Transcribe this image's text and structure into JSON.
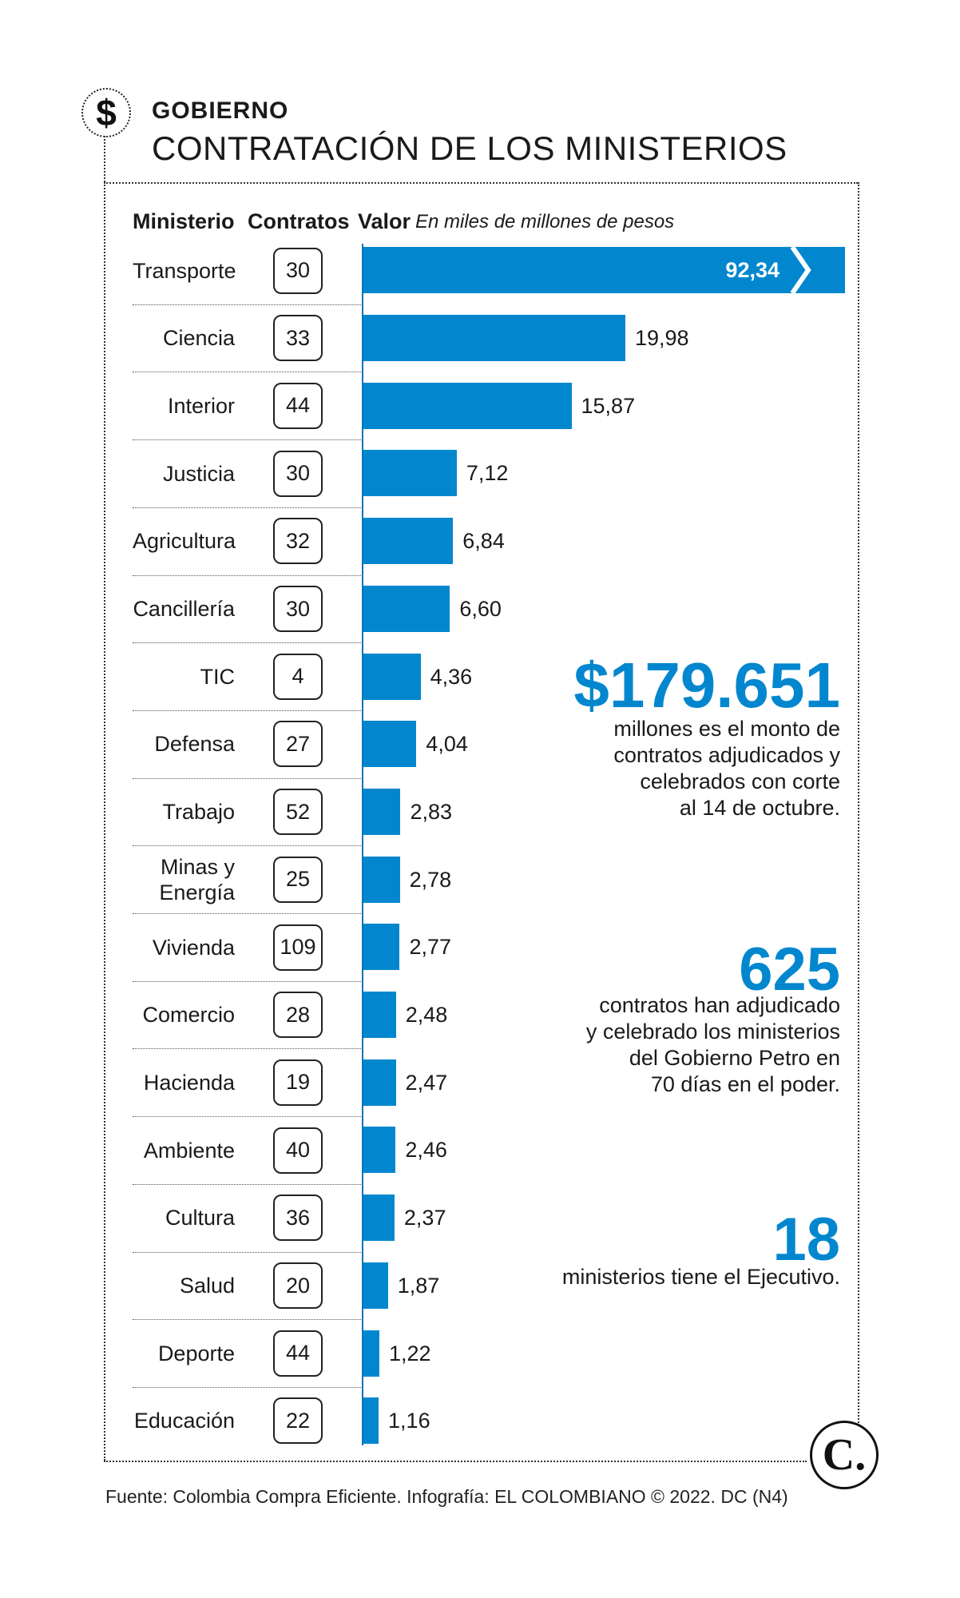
{
  "header": {
    "kicker": "GOBIERNO",
    "title": "CONTRATACIÓN DE LOS MINISTERIOS",
    "icon": "dollar-icon"
  },
  "columns": {
    "ministry": "Ministerio",
    "contracts": "Contratos",
    "value": "Valor",
    "value_unit": "En miles de millones de pesos"
  },
  "chart_data": {
    "type": "bar",
    "orientation": "horizontal",
    "categories": [
      "Transporte",
      "Ciencia",
      "Interior",
      "Justicia",
      "Agricultura",
      "Cancillería",
      "TIC",
      "Defensa",
      "Trabajo",
      "Minas y Energía",
      "Vivienda",
      "Comercio",
      "Hacienda",
      "Ambiente",
      "Cultura",
      "Salud",
      "Deporte",
      "Educación"
    ],
    "category_lines": [
      [
        "Transporte"
      ],
      [
        "Ciencia"
      ],
      [
        "Interior"
      ],
      [
        "Justicia"
      ],
      [
        "Agricultura"
      ],
      [
        "Cancillería"
      ],
      [
        "TIC"
      ],
      [
        "Defensa"
      ],
      [
        "Trabajo"
      ],
      [
        "Minas y",
        "Energía"
      ],
      [
        "Vivienda"
      ],
      [
        "Comercio"
      ],
      [
        "Hacienda"
      ],
      [
        "Ambiente"
      ],
      [
        "Cultura"
      ],
      [
        "Salud"
      ],
      [
        "Deporte"
      ],
      [
        "Educación"
      ]
    ],
    "contracts": [
      30,
      33,
      44,
      30,
      32,
      30,
      4,
      27,
      52,
      25,
      109,
      28,
      19,
      40,
      36,
      20,
      44,
      22
    ],
    "values": [
      92.34,
      19.98,
      15.87,
      7.12,
      6.84,
      6.6,
      4.36,
      4.04,
      2.83,
      2.78,
      2.77,
      2.48,
      2.47,
      2.46,
      2.37,
      1.87,
      1.22,
      1.16
    ],
    "value_labels": [
      "92,34",
      "19,98",
      "15,87",
      "7,12",
      "6,84",
      "6,60",
      "4,36",
      "4,04",
      "2,83",
      "2,78",
      "2,77",
      "2,48",
      "2,47",
      "2,46",
      "2,37",
      "1,87",
      "1,22",
      "1,16"
    ],
    "broken_axis_category": "Transporte",
    "bar_color": "#0287cf",
    "xlim": [
      0,
      25
    ]
  },
  "callouts": [
    {
      "number": "$179.651",
      "lines": [
        "millones es el monto de",
        "contratos adjudicados y",
        "celebrados con corte",
        "al 14 de octubre."
      ]
    },
    {
      "number": "625",
      "lines": [
        "contratos han adjudicado",
        "y celebrado los ministerios",
        "del Gobierno Petro en",
        "70 días en el poder."
      ]
    },
    {
      "number": "18",
      "lines": [
        "ministerios tiene el Ejecutivo."
      ]
    }
  ],
  "logo": {
    "letter": "C."
  },
  "source": "Fuente: Colombia Compra Eficiente. Infografía: EL COLOMBIANO © 2022. DC (N4)",
  "colors": {
    "accent": "#0287cf",
    "text": "#1a1a1a"
  }
}
